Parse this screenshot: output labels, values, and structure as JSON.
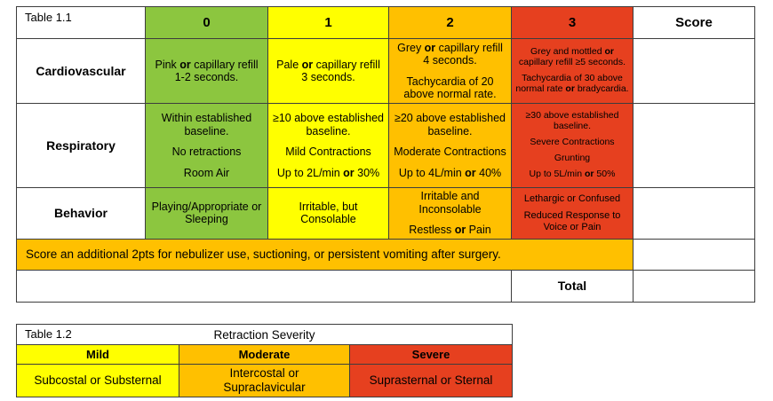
{
  "colors": {
    "score_0_green": "#8cc63f",
    "score_1_yellow": "#ffff00",
    "score_2_orange": "#ffc000",
    "score_3_red": "#e6401f"
  },
  "table1": {
    "title": "Table 1.1",
    "score_header": "Score",
    "columns": [
      "0",
      "1",
      "2",
      "3"
    ],
    "rows": [
      {
        "label": "Cardiovascular",
        "cells": [
          "Pink **or** capillary refill 1-2 seconds.",
          "Pale **or** capillary refill 3 seconds.",
          "Grey **or** capillary refill 4 seconds.\n\nTachycardia of 20 above normal rate.",
          "Grey and mottled **or** capillary refill ≥5 seconds.\n\nTachycardia of 30 above normal rate **or** bradycardia."
        ]
      },
      {
        "label": "Respiratory",
        "cells": [
          "Within established baseline.\n\nNo retractions\n\nRoom Air",
          "≥10 above established baseline.\n\nMild Contractions\n\nUp to 2L/min **or** 30%",
          "≥20 above established baseline.\n\nModerate Contractions\n\nUp to 4L/min **or** 40%",
          "≥30 above established baseline.\n\nSevere Contractions\n\nGrunting\n\nUp to 5L/min **or** 50%"
        ]
      },
      {
        "label": "Behavior",
        "cells": [
          "Playing/Appropriate or Sleeping",
          "Irritable, but Consolable",
          "Irritable and Inconsolable\n\nRestless **or** Pain",
          "Lethargic or Confused\n\nReduced Response to Voice or Pain"
        ]
      }
    ],
    "note": "Score an additional 2pts for nebulizer use, suctioning, or persistent vomiting after surgery.",
    "total_label": "Total"
  },
  "table2": {
    "title": "Table 1.2",
    "heading": "Retraction Severity",
    "columns": [
      {
        "label": "Mild",
        "value": "Subcostal or Substernal"
      },
      {
        "label": "Moderate",
        "value": "Intercostal or Supraclavicular"
      },
      {
        "label": "Severe",
        "value": "Suprasternal or Sternal"
      }
    ]
  }
}
